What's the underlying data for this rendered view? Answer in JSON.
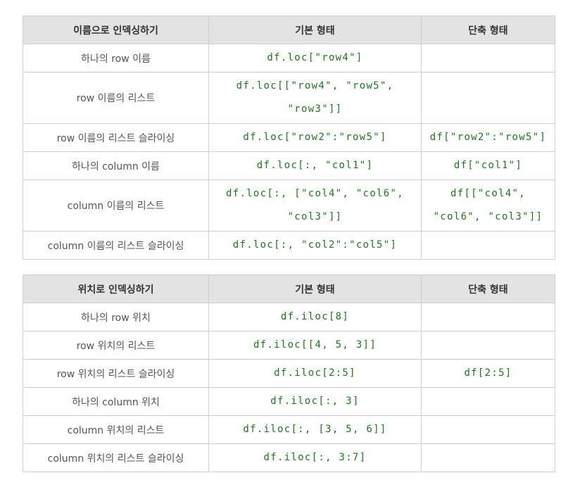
{
  "loc_table": {
    "headers": [
      "이름으로 인덱싱하기",
      "기본 형태",
      "단축 형태"
    ],
    "rows": [
      {
        "label": "하나의 row 이름",
        "basic": "df.loc[\"row4\"]",
        "short": ""
      },
      {
        "label": "row 이름의 리스트",
        "basic": "df.loc[[\"row4\", \"row5\", \"row3\"]]",
        "short": ""
      },
      {
        "label": "row 이름의 리스트 슬라이싱",
        "basic": "df.loc[\"row2\":\"row5\"]",
        "short": "df[\"row2\":\"row5\"]"
      },
      {
        "label": "하나의 column 이름",
        "basic": "df.loc[:, \"col1\"]",
        "short": "df[\"col1\"]"
      },
      {
        "label": "column 이름의 리스트",
        "basic": "df.loc[:, [\"col4\", \"col6\", \"col3\"]]",
        "short": "df[[\"col4\", \"col6\", \"col3\"]]"
      },
      {
        "label": "column 이름의 리스트 슬라이싱",
        "basic": "df.loc[:, \"col2\":\"col5\"]",
        "short": ""
      }
    ]
  },
  "iloc_table": {
    "headers": [
      "위치로 인덱싱하기",
      "기본 형태",
      "단축 형태"
    ],
    "rows": [
      {
        "label": "하나의 row 위치",
        "basic": "df.iloc[8]",
        "short": ""
      },
      {
        "label": "row 위치의 리스트",
        "basic": "df.iloc[[4, 5, 3]]",
        "short": ""
      },
      {
        "label": "row 위치의 리스트 슬라이싱",
        "basic": "df.iloc[2:5]",
        "short": "df[2:5]"
      },
      {
        "label": "하나의 column 위치",
        "basic": "df.iloc[:, 3]",
        "short": ""
      },
      {
        "label": "column 위치의 리스트",
        "basic": "df.iloc[:, [3, 5, 6]]",
        "short": ""
      },
      {
        "label": "column 위치의 리스트 슬라이싱",
        "basic": "df.iloc[:, 3:7]",
        "short": ""
      }
    ]
  }
}
